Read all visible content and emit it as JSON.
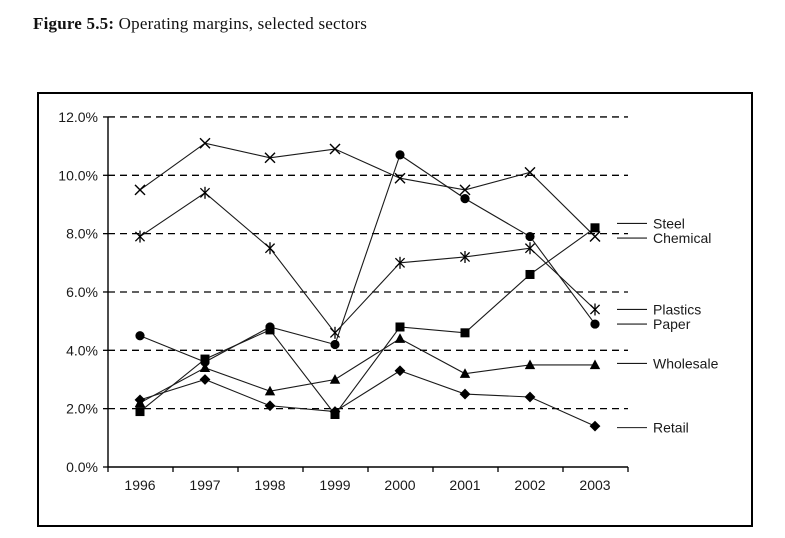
{
  "title": {
    "prefix": "Figure 5.5:",
    "text": " Operating margins, selected sectors"
  },
  "colors": {
    "line": "#1a1a1a",
    "marker": "#000000",
    "grid": "#000000",
    "axis": "#000000",
    "background": "#ffffff",
    "frame": "#000000"
  },
  "chart_data": {
    "type": "line",
    "categories": [
      "1996",
      "1997",
      "1998",
      "1999",
      "2000",
      "2001",
      "2002",
      "2003"
    ],
    "xlabel": "",
    "ylabel": "",
    "ylim": [
      0,
      12
    ],
    "grid": "horizontal-dashed",
    "legend_position": "right-callouts",
    "y_ticks": [
      {
        "value": 12,
        "label": "12.0%"
      },
      {
        "value": 10,
        "label": "10.0%"
      },
      {
        "value": 8,
        "label": "8.0%"
      },
      {
        "value": 6,
        "label": "6.0%"
      },
      {
        "value": 4,
        "label": "4.0%"
      },
      {
        "value": 2,
        "label": "2.0%"
      },
      {
        "value": 0,
        "label": "0.0%"
      }
    ],
    "series": [
      {
        "name": "Steel",
        "marker": "square",
        "values": [
          1.9,
          3.7,
          4.7,
          1.8,
          4.8,
          4.6,
          6.6,
          8.2
        ],
        "label_at": 8.35
      },
      {
        "name": "Chemical",
        "marker": "x",
        "values": [
          9.5,
          11.1,
          10.6,
          10.9,
          9.9,
          9.5,
          10.1,
          7.9
        ],
        "label_at": 7.85
      },
      {
        "name": "Plastics",
        "marker": "asterisk",
        "values": [
          7.9,
          9.4,
          7.5,
          4.6,
          7.0,
          7.2,
          7.5,
          5.4
        ],
        "label_at": 5.4
      },
      {
        "name": "Paper",
        "marker": "circle",
        "values": [
          4.5,
          3.6,
          4.8,
          4.2,
          10.7,
          9.2,
          7.9,
          4.9
        ],
        "label_at": 4.9
      },
      {
        "name": "Wholesale",
        "marker": "triangle",
        "values": [
          2.2,
          3.4,
          2.6,
          3.0,
          4.4,
          3.2,
          3.5,
          3.5
        ],
        "label_at": 3.55
      },
      {
        "name": "Retail",
        "marker": "diamond",
        "values": [
          2.3,
          3.0,
          2.1,
          1.9,
          3.3,
          2.5,
          2.4,
          1.4
        ],
        "label_at": 1.35
      }
    ]
  }
}
